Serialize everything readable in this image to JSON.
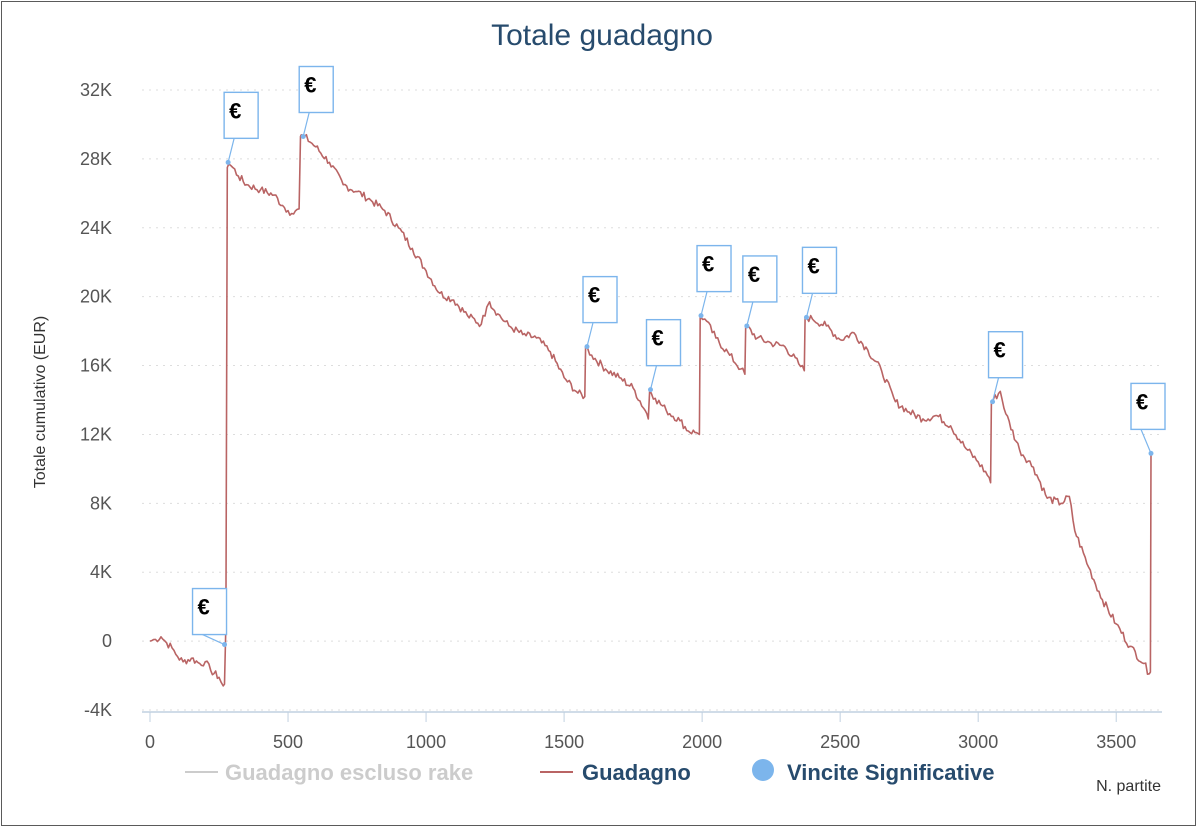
{
  "chart_data": {
    "type": "line",
    "title": "Totale guadagno",
    "ylabel": "Totale cumulativo (EUR)",
    "xlabel": "N. partite",
    "xlim": [
      -10,
      3640
    ],
    "ylim": [
      -4000,
      32000
    ],
    "x_ticks": [
      0,
      500,
      1000,
      1500,
      2000,
      2500,
      3000,
      3500
    ],
    "y_ticks": [
      -4000,
      0,
      4000,
      8000,
      12000,
      16000,
      20000,
      24000,
      28000,
      32000
    ],
    "y_tick_labels": [
      "-4K",
      "0",
      "4K",
      "8K",
      "12K",
      "16K",
      "20K",
      "24K",
      "28K",
      "32K"
    ],
    "grid": "horizontal dotted",
    "legend_position": "bottom",
    "series": [
      {
        "name": "Guadagno escluso rake",
        "visible": false,
        "color": "#cccccc",
        "x": [],
        "y": []
      },
      {
        "name": "Guadagno",
        "color": "#b96464",
        "x": [
          0,
          20,
          40,
          60,
          80,
          100,
          120,
          150,
          180,
          200,
          220,
          250,
          265,
          270,
          275,
          280,
          285,
          300,
          320,
          350,
          400,
          450,
          480,
          500,
          520,
          540,
          545,
          548,
          560,
          600,
          650,
          700,
          750,
          800,
          850,
          900,
          950,
          1000,
          1050,
          1100,
          1150,
          1200,
          1220,
          1230,
          1260,
          1300,
          1350,
          1400,
          1450,
          1500,
          1550,
          1575,
          1578,
          1600,
          1650,
          1700,
          1750,
          1800,
          1805,
          1810,
          1830,
          1870,
          1920,
          1950,
          1980,
          1990,
          1993,
          2010,
          2050,
          2100,
          2140,
          2155,
          2158,
          2200,
          2250,
          2300,
          2350,
          2370,
          2373,
          2400,
          2450,
          2500,
          2550,
          2600,
          2650,
          2700,
          2750,
          2800,
          2850,
          2900,
          2950,
          3000,
          3040,
          3045,
          3048,
          3080,
          3100,
          3150,
          3200,
          3250,
          3300,
          3330,
          3350,
          3400,
          3450,
          3500,
          3550,
          3600,
          3620,
          3624,
          3626
        ],
        "y": [
          0,
          100,
          250,
          -100,
          -400,
          -900,
          -1200,
          -1000,
          -1300,
          -1200,
          -1700,
          -2100,
          -2600,
          -2500,
          1000,
          27500,
          27700,
          27500,
          27000,
          26500,
          26200,
          25900,
          25300,
          25000,
          24800,
          25100,
          29300,
          29400,
          29300,
          28700,
          27800,
          26500,
          26100,
          25600,
          25000,
          24000,
          22800,
          21500,
          20200,
          19800,
          18900,
          18400,
          19400,
          19700,
          19000,
          18300,
          17800,
          17600,
          16800,
          15300,
          14400,
          14200,
          17100,
          16600,
          15800,
          15300,
          14700,
          13200,
          12900,
          14600,
          14100,
          13400,
          12800,
          12200,
          12100,
          12000,
          18900,
          18700,
          17600,
          16600,
          15800,
          15500,
          18300,
          17600,
          17300,
          17100,
          16100,
          15700,
          18800,
          18700,
          18300,
          17500,
          17900,
          16900,
          15700,
          13900,
          13300,
          12900,
          13100,
          12500,
          11300,
          10400,
          9500,
          9200,
          13900,
          14500,
          13200,
          11100,
          10100,
          8300,
          8000,
          8400,
          6400,
          4300,
          2400,
          1000,
          -300,
          -1300,
          -1900,
          -1800,
          10900
        ]
      },
      {
        "name": "Vincite Significative",
        "type": "flags",
        "color": "#7cb5ec",
        "flag_label": "€",
        "points": [
          {
            "x": 270,
            "y": -200
          },
          {
            "x": 283,
            "y": 27800
          },
          {
            "x": 555,
            "y": 29300
          },
          {
            "x": 1583,
            "y": 17100
          },
          {
            "x": 1813,
            "y": 14600
          },
          {
            "x": 1996,
            "y": 18900
          },
          {
            "x": 2162,
            "y": 18300
          },
          {
            "x": 2378,
            "y": 18800
          },
          {
            "x": 3052,
            "y": 13900
          },
          {
            "x": 3626,
            "y": 10900
          }
        ]
      }
    ]
  }
}
